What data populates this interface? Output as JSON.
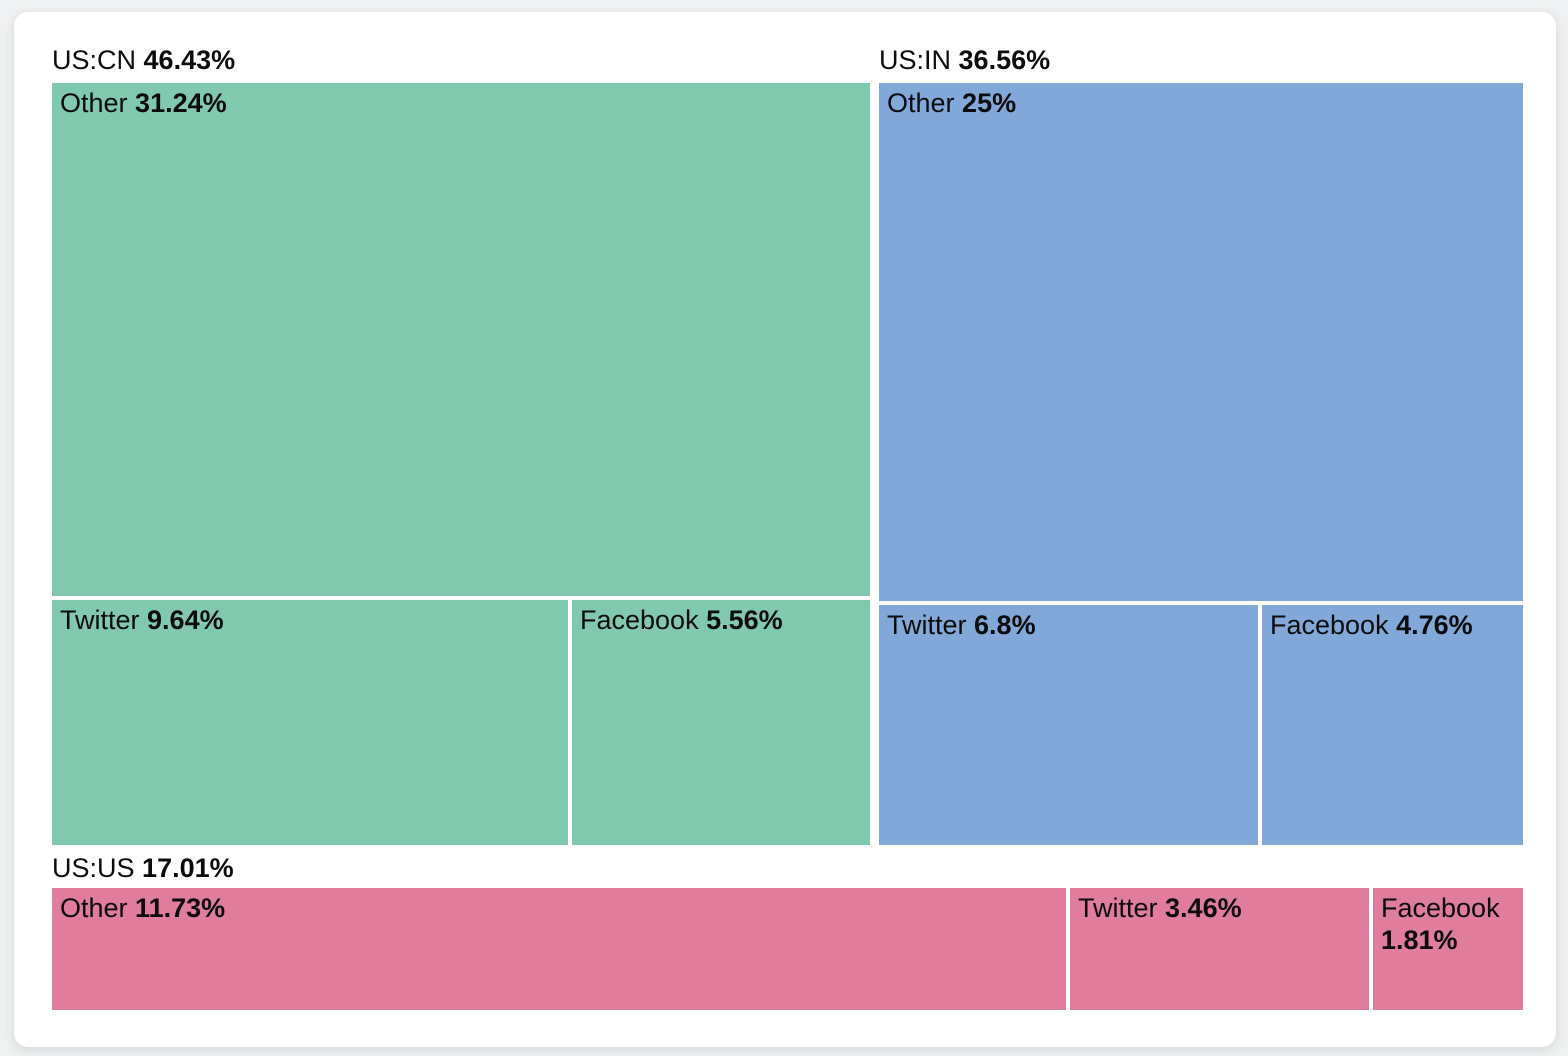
{
  "page": {
    "background_color": "#eef0f1",
    "card_background_color": "#ffffff",
    "text_color": "#0c0c0c"
  },
  "chart_data": {
    "type": "treemap",
    "title": "",
    "unit": "%",
    "legend": "none",
    "groups": [
      {
        "name": "US:CN",
        "pct_label": "46.43%",
        "value": 46.43,
        "color": "#80c8ae",
        "cells": [
          {
            "label": "Other",
            "pct_label": "31.24%",
            "value": 31.24
          },
          {
            "label": "Twitter",
            "pct_label": "9.64%",
            "value": 9.64
          },
          {
            "label": "Facebook",
            "pct_label": "5.56%",
            "value": 5.56
          }
        ]
      },
      {
        "name": "US:IN",
        "pct_label": "36.56%",
        "value": 36.56,
        "color": "#81a8d8",
        "cells": [
          {
            "label": "Other",
            "pct_label": "25%",
            "value": 25.0
          },
          {
            "label": "Twitter",
            "pct_label": "6.8%",
            "value": 6.8
          },
          {
            "label": "Facebook",
            "pct_label": "4.76%",
            "value": 4.76
          }
        ]
      },
      {
        "name": "US:US",
        "pct_label": "17.01%",
        "value": 17.01,
        "color": "#e07c9c",
        "cells": [
          {
            "label": "Other",
            "pct_label": "11.73%",
            "value": 11.73
          },
          {
            "label": "Twitter",
            "pct_label": "3.46%",
            "value": 3.46
          },
          {
            "label": "Facebook",
            "pct_label": "1.81%",
            "value": 1.81
          }
        ]
      }
    ]
  }
}
